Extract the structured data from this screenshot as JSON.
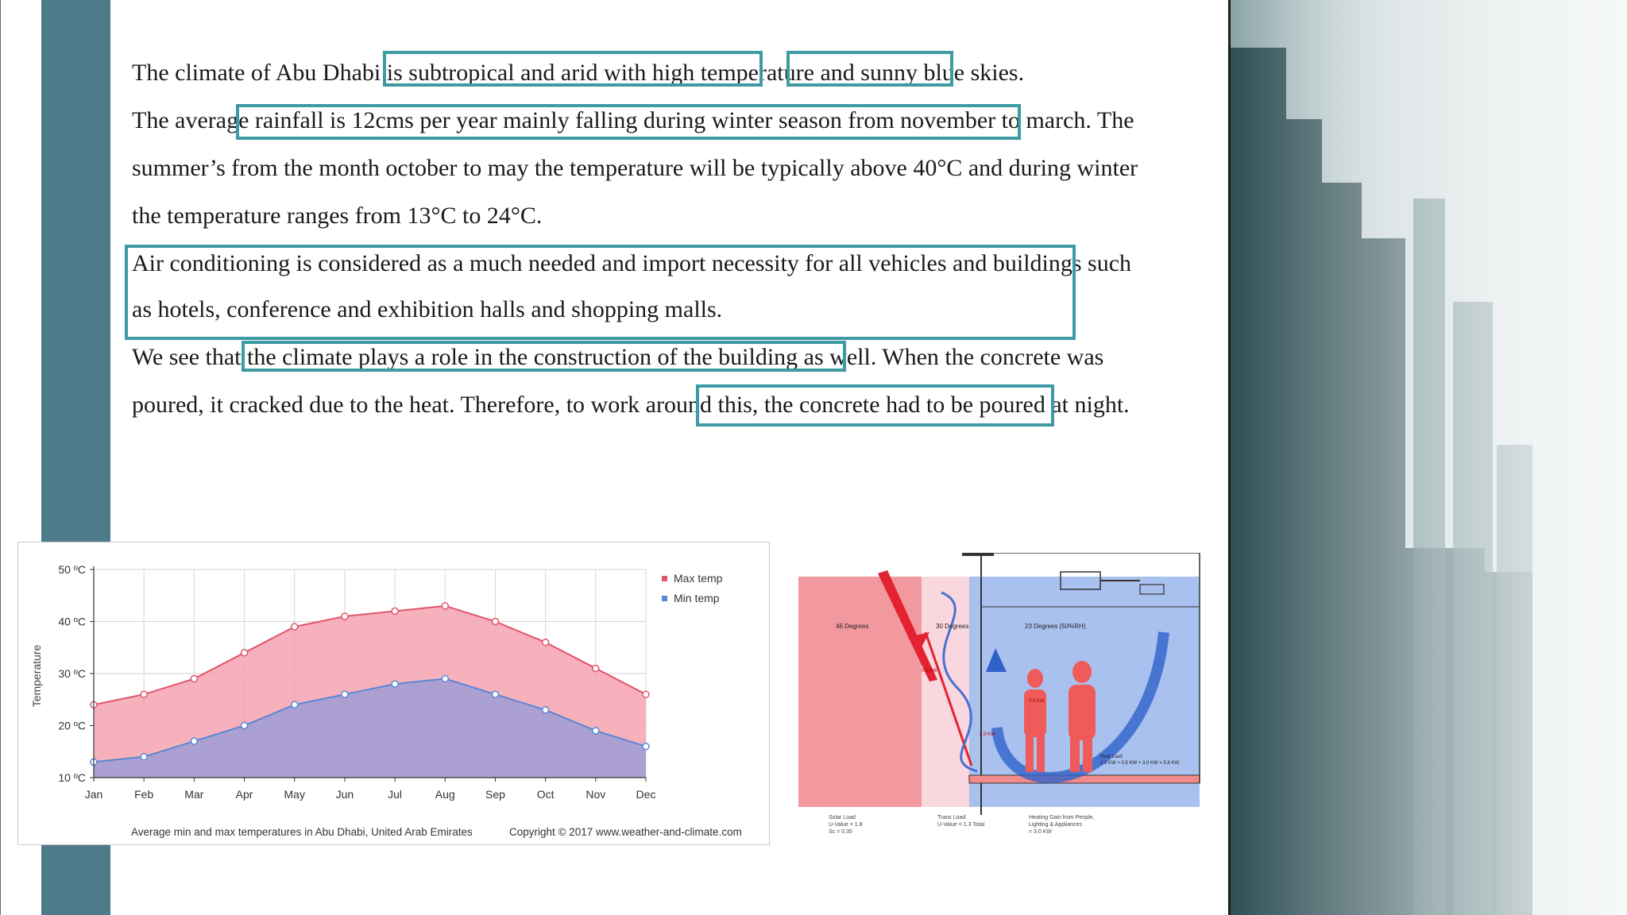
{
  "paragraphs": {
    "p1_a": "The climate of Abu Dhabi is ",
    "p1_b": "subtropical and arid with high temperature",
    "p1_c": " and ",
    "p1_d": "sunny blue skies.",
    "p2_a": "The average ",
    "p2_b": "rainfall is 12cms per year mainly falling during winter season from november to march.",
    "p2_c": " The",
    "p2_line2": "summer’s  from the month  october to may the temperature will be typically above 40°C and during winter",
    "p2_line3": "the temperature ranges from 13°C to 24°C.",
    "p3_line1": "Air conditioning is considered as a much needed and import necessity for all vehicles and buildings such",
    "p3_line2": "as hotels, conference and exhibition halls and shopping malls.",
    "p4_a": "We see that ",
    "p4_b": "the climate plays a role in the construction of the building as well.",
    "p4_c": " When the concrete was",
    "p4_line2_a": "poured, it cracked due to the heat. Therefore, to work around this",
    "p4_line2_b": ", the concrete had to be poured at night."
  },
  "colors": {
    "accent_bar": "#4d7b8a",
    "highlight_border": "#3e9aa3",
    "max_series": "#e0566b",
    "min_series": "#5b86d6"
  },
  "chart_data": {
    "type": "area",
    "categories": [
      "Jan",
      "Feb",
      "Mar",
      "Apr",
      "May",
      "Jun",
      "Jul",
      "Aug",
      "Sep",
      "Oct",
      "Nov",
      "Dec"
    ],
    "series": [
      {
        "name": "Max temp",
        "values": [
          24,
          26,
          29,
          34,
          39,
          41,
          42,
          43,
          40,
          36,
          31,
          26
        ],
        "color": "#e0566b"
      },
      {
        "name": "Min temp",
        "values": [
          13,
          14,
          17,
          20,
          24,
          26,
          28,
          29,
          26,
          23,
          19,
          16
        ],
        "color": "#5b86d6"
      }
    ],
    "ylabel": "Temperature",
    "yticks": [
      "10 ºC",
      "20 ºC",
      "30 ºC",
      "40 ºC",
      "50 ºC"
    ],
    "ylim": [
      10,
      50
    ],
    "grid": true,
    "legend": "top-right",
    "caption": "Average min and max temperatures in Abu Dhabi, United Arab Emirates",
    "copyright": "Copyright © 2017 www.weather-and-climate.com"
  },
  "diagram": {
    "label_outside": "46 Degrees",
    "label_mid": "30 Degrees",
    "label_inside": "23 Degrees (50%RH)",
    "solar_load": "Solar Load",
    "solar_u": "U-Value = 1.8",
    "solar_sc": "Sc = 0.35",
    "trans_load": "Trans Load",
    "trans_u": "U-Value = 1.3 Total",
    "heat_gain": "Heating Gain from People,",
    "heat_gain2": "Lighting & Appliances",
    "heat_gain3": "= 3.0 KW",
    "heat_load": "Heat Load",
    "heat_load_val": "2.3 KW + 0.5 KW + 3.0 KW = 5.8 KW",
    "kw1": "3.0 KW",
    "kw2": "2.3 KW",
    "kw3": "0.5 KW"
  }
}
